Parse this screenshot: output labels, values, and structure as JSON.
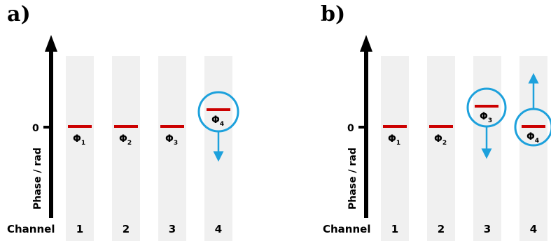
{
  "colors": {
    "lane": "#f0f0f0",
    "phase_marker": "#cc0000",
    "highlight": "#1da1dc",
    "axis": "#000000"
  },
  "panels": [
    {
      "label": "a)",
      "y_axis_label": "Phase / rad",
      "zero_label": "0",
      "channel_axis_label": "Channel",
      "channels": [
        {
          "number": "1",
          "phase_symbol": "Φ",
          "phase_sub": "1",
          "offset": 0,
          "highlighted": false,
          "arrows": []
        },
        {
          "number": "2",
          "phase_symbol": "Φ",
          "phase_sub": "2",
          "offset": 0,
          "highlighted": false,
          "arrows": []
        },
        {
          "number": "3",
          "phase_symbol": "Φ",
          "phase_sub": "3",
          "offset": 0,
          "highlighted": false,
          "arrows": []
        },
        {
          "number": "4",
          "phase_symbol": "Φ",
          "phase_sub": "4",
          "offset": 0.25,
          "highlighted": true,
          "arrows": [
            "down"
          ]
        }
      ]
    },
    {
      "label": "b)",
      "y_axis_label": "Phase / rad",
      "zero_label": "0",
      "channel_axis_label": "Channel",
      "channels": [
        {
          "number": "1",
          "phase_symbol": "Φ",
          "phase_sub": "1",
          "offset": 0,
          "highlighted": false,
          "arrows": []
        },
        {
          "number": "2",
          "phase_symbol": "Φ",
          "phase_sub": "2",
          "offset": 0,
          "highlighted": false,
          "arrows": []
        },
        {
          "number": "3",
          "phase_symbol": "Φ",
          "phase_sub": "3",
          "offset": 0.3,
          "highlighted": true,
          "arrows": [
            "down"
          ]
        },
        {
          "number": "4",
          "phase_symbol": "Φ",
          "phase_sub": "4",
          "offset": 0,
          "highlighted": true,
          "arrows": [
            "up"
          ]
        }
      ]
    }
  ]
}
